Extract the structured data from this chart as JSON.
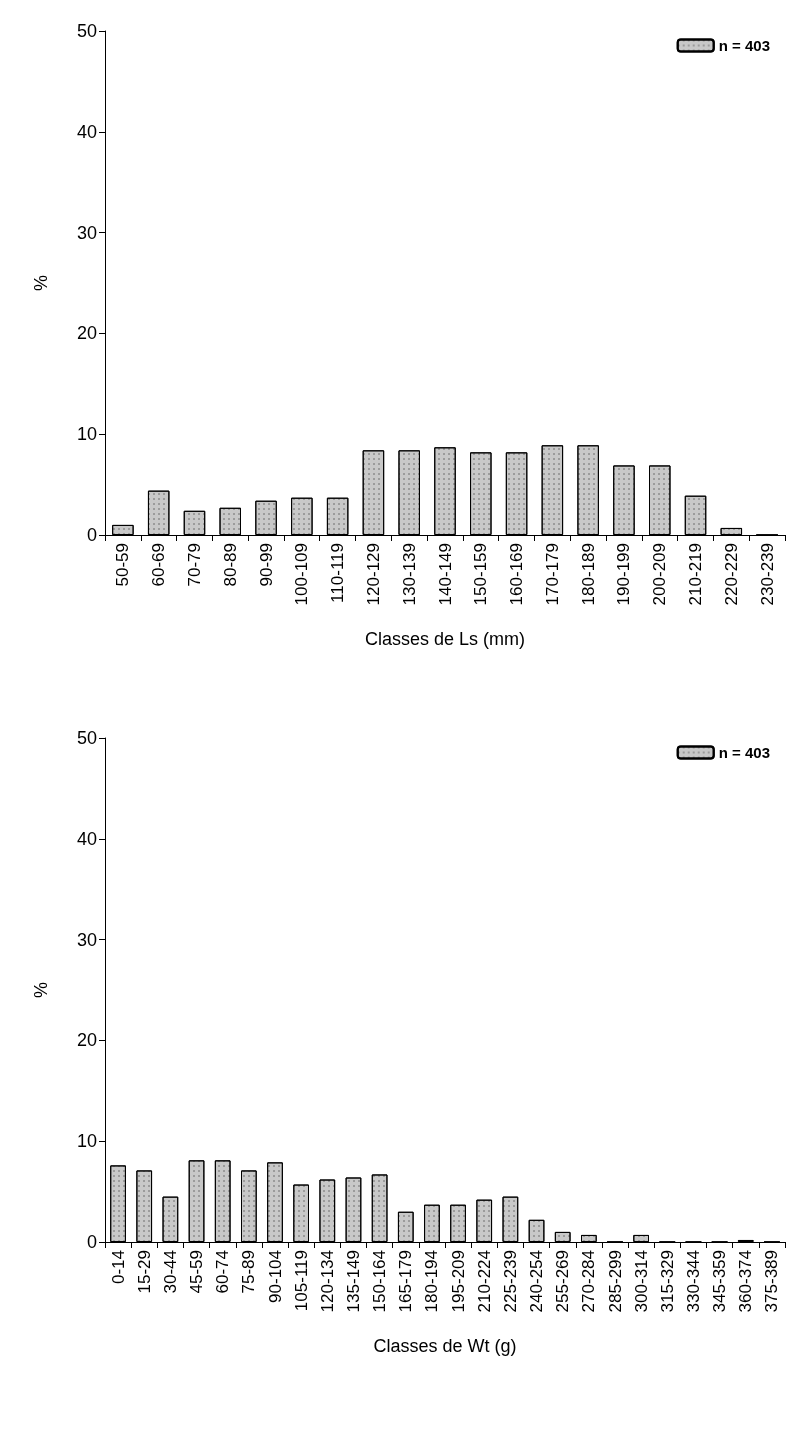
{
  "chart_data": [
    {
      "type": "bar",
      "xlabel": "Classes de Ls (mm)",
      "ylabel": "%",
      "categories": [
        "50-59",
        "60-69",
        "70-79",
        "80-89",
        "90-99",
        "100-109",
        "110-119",
        "120-129",
        "130-139",
        "140-149",
        "150-159",
        "160-169",
        "170-179",
        "180-189",
        "190-199",
        "200-209",
        "210-219",
        "220-229",
        "230-239"
      ],
      "series": [
        {
          "name": "n = 403",
          "color": "#c8c8c8",
          "values": [
            1.0,
            4.4,
            2.4,
            2.7,
            3.4,
            3.7,
            3.7,
            8.4,
            8.4,
            8.7,
            8.2,
            8.2,
            8.9,
            8.9,
            6.9,
            6.9,
            3.9,
            0.7,
            0
          ]
        }
      ],
      "ylim": [
        0,
        50
      ],
      "yticks": [
        0,
        10,
        20,
        30,
        40,
        50
      ],
      "grid": false,
      "legend": "top right"
    },
    {
      "type": "bar",
      "xlabel": "Classes de Wt (g)",
      "ylabel": "%",
      "categories": [
        "0-14",
        "15-29",
        "30-44",
        "45-59",
        "60-74",
        "75-89",
        "90-104",
        "105-119",
        "120-134",
        "135-149",
        "150-164",
        "165-179",
        "180-194",
        "195-209",
        "210-224",
        "225-239",
        "240-254",
        "255-269",
        "270-284",
        "285-299",
        "300-314",
        "315-329",
        "330-344",
        "345-359",
        "360-374",
        "375-389"
      ],
      "series": [
        {
          "name": "n = 403",
          "color": "#c8c8c8",
          "values": [
            7.6,
            7.1,
            4.5,
            8.1,
            8.1,
            7.1,
            7.9,
            5.7,
            6.2,
            6.4,
            6.7,
            3.0,
            3.7,
            3.7,
            4.2,
            4.5,
            2.2,
            1.0,
            0.7,
            0,
            0.7,
            0,
            0,
            0,
            0.2,
            0
          ]
        }
      ],
      "ylim": [
        0,
        50
      ],
      "yticks": [
        0,
        10,
        20,
        30,
        40,
        50
      ],
      "grid": false,
      "legend": "top right"
    }
  ]
}
